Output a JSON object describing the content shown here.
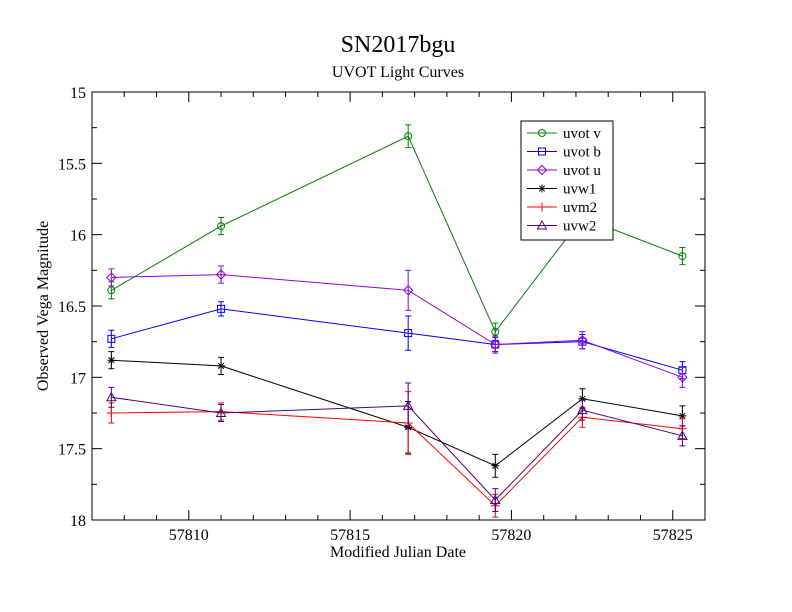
{
  "chart_data": {
    "type": "line",
    "title": "SN2017bgu",
    "subtitle": "UVOT Light Curves",
    "xlabel": "Modified Julian Date",
    "ylabel": "Observed Vega Magnitude",
    "xlim": [
      57807,
      57826
    ],
    "ylim": [
      15,
      18
    ],
    "y_inverted": true,
    "x_ticks": [
      57810,
      57815,
      57820,
      57825
    ],
    "y_ticks": [
      15,
      15.5,
      16,
      16.5,
      17,
      17.5,
      18
    ],
    "x_tick_labels": [
      "57810",
      "57815",
      "57820",
      "57825"
    ],
    "y_tick_labels": [
      "15",
      "15.5",
      "16",
      "16.5",
      "17",
      "17.5",
      "18"
    ],
    "grid": false,
    "legend_position": "top-right",
    "series": [
      {
        "name": "uvot v",
        "color": "#008000",
        "marker": "circle",
        "x": [
          57807.6,
          57811.0,
          57816.8,
          57819.5,
          57822.2,
          57825.3
        ],
        "y": [
          16.39,
          15.94,
          15.31,
          16.68,
          15.88,
          16.15
        ],
        "err": [
          0.06,
          0.06,
          0.08,
          0.06,
          0.06,
          0.06
        ]
      },
      {
        "name": "uvot b",
        "color": "#0000ff",
        "marker": "square",
        "x": [
          57807.6,
          57811.0,
          57816.8,
          57819.5,
          57822.2,
          57825.3
        ],
        "y": [
          16.73,
          16.52,
          16.69,
          16.77,
          16.75,
          16.95
        ],
        "err": [
          0.06,
          0.05,
          0.12,
          0.05,
          0.05,
          0.06
        ]
      },
      {
        "name": "uvot u",
        "color": "#9400d3",
        "marker": "diamond",
        "x": [
          57807.6,
          57811.0,
          57816.8,
          57819.5,
          57822.2,
          57825.3
        ],
        "y": [
          16.3,
          16.28,
          16.39,
          16.77,
          16.74,
          17.0
        ],
        "err": [
          0.06,
          0.06,
          0.14,
          0.06,
          0.06,
          0.07
        ]
      },
      {
        "name": "uvw1",
        "color": "#000000",
        "marker": "star",
        "x": [
          57807.6,
          57811.0,
          57816.8,
          57819.5,
          57822.2,
          57825.3
        ],
        "y": [
          16.88,
          16.92,
          17.35,
          17.62,
          17.15,
          17.27
        ],
        "err": [
          0.06,
          0.06,
          0.18,
          0.08,
          0.07,
          0.07
        ]
      },
      {
        "name": "uvm2",
        "color": "#ff0000",
        "marker": "plus",
        "x": [
          57807.6,
          57811.0,
          57816.8,
          57819.5,
          57822.2,
          57825.3
        ],
        "y": [
          17.25,
          17.24,
          17.32,
          17.9,
          17.28,
          17.36
        ],
        "err": [
          0.07,
          0.06,
          0.22,
          0.08,
          0.07,
          0.07
        ]
      },
      {
        "name": "uvw2",
        "color": "#4b0082",
        "marker": "triangle",
        "x": [
          57807.6,
          57811.0,
          57816.8,
          57819.5,
          57822.2,
          57825.3
        ],
        "y": [
          17.14,
          17.25,
          17.2,
          17.86,
          17.23,
          17.41
        ],
        "err": [
          0.07,
          0.06,
          0.16,
          0.08,
          0.07,
          0.07
        ]
      }
    ]
  }
}
